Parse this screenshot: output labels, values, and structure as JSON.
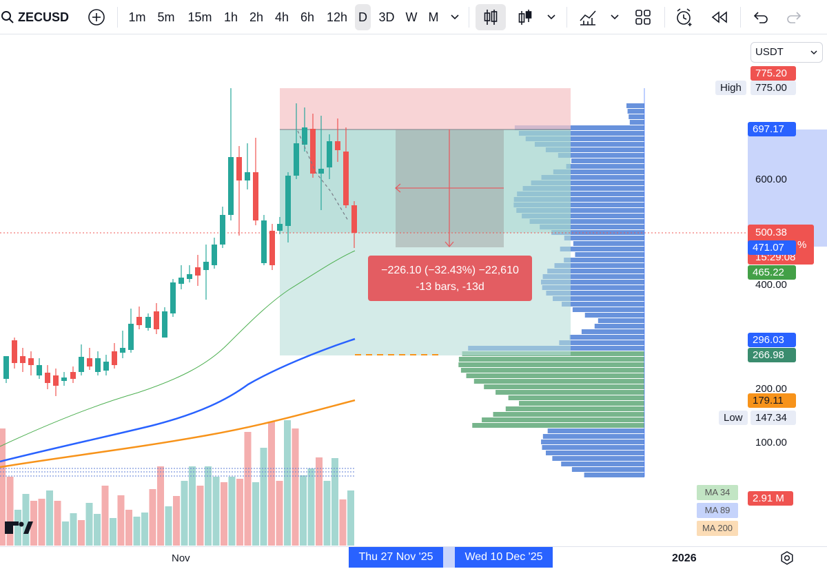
{
  "toolbar": {
    "symbol": "ZECUSD",
    "intervals": [
      "1m",
      "5m",
      "15m",
      "1h",
      "2h",
      "4h",
      "6h",
      "12h",
      "D",
      "3D",
      "W",
      "M"
    ],
    "active_interval": "D"
  },
  "currency": "USDT",
  "price_scale": {
    "tick_labels": [
      "600.00",
      "400.00",
      "200.00",
      "100.00"
    ],
    "high_label": "High",
    "high_value": "775.00",
    "low_label": "Low",
    "low_value": "147.34",
    "target_top": "775.20",
    "entry_price": "697.17",
    "current_price": "500.38",
    "countdown": "15:29:08",
    "vwap": "471.07",
    "ma34_price": "465.22",
    "ma89_price": "296.03",
    "stop_price": "266.98",
    "ma200_price": "179.11",
    "partial_pct": "%"
  },
  "measure": {
    "line1": "−226.10 (−32.43%) −22,610",
    "line2": "-13 bars, -13d"
  },
  "volume": {
    "value": "2.91 M"
  },
  "ma_legend": [
    "MA 34",
    "MA 89",
    "MA 200"
  ],
  "time_axis": {
    "month_label": "Nov",
    "range_start": "Thu 27 Nov '25",
    "range_end": "Wed 10 Dec '25",
    "year_label": "2026"
  },
  "colors": {
    "up": "#26a69a",
    "down": "#ef5350",
    "ma34": "#4caf50",
    "ma89": "#2962ff",
    "ma200": "#f7931a",
    "accent": "#2962ff"
  },
  "icons": [
    "search-icon",
    "add-symbol-icon",
    "candles-icon",
    "bar-style-icon",
    "indicators-icon",
    "layouts-icon",
    "alert-icon",
    "replay-icon",
    "undo-icon",
    "redo-icon",
    "settings-icon",
    "logo-icon"
  ]
}
